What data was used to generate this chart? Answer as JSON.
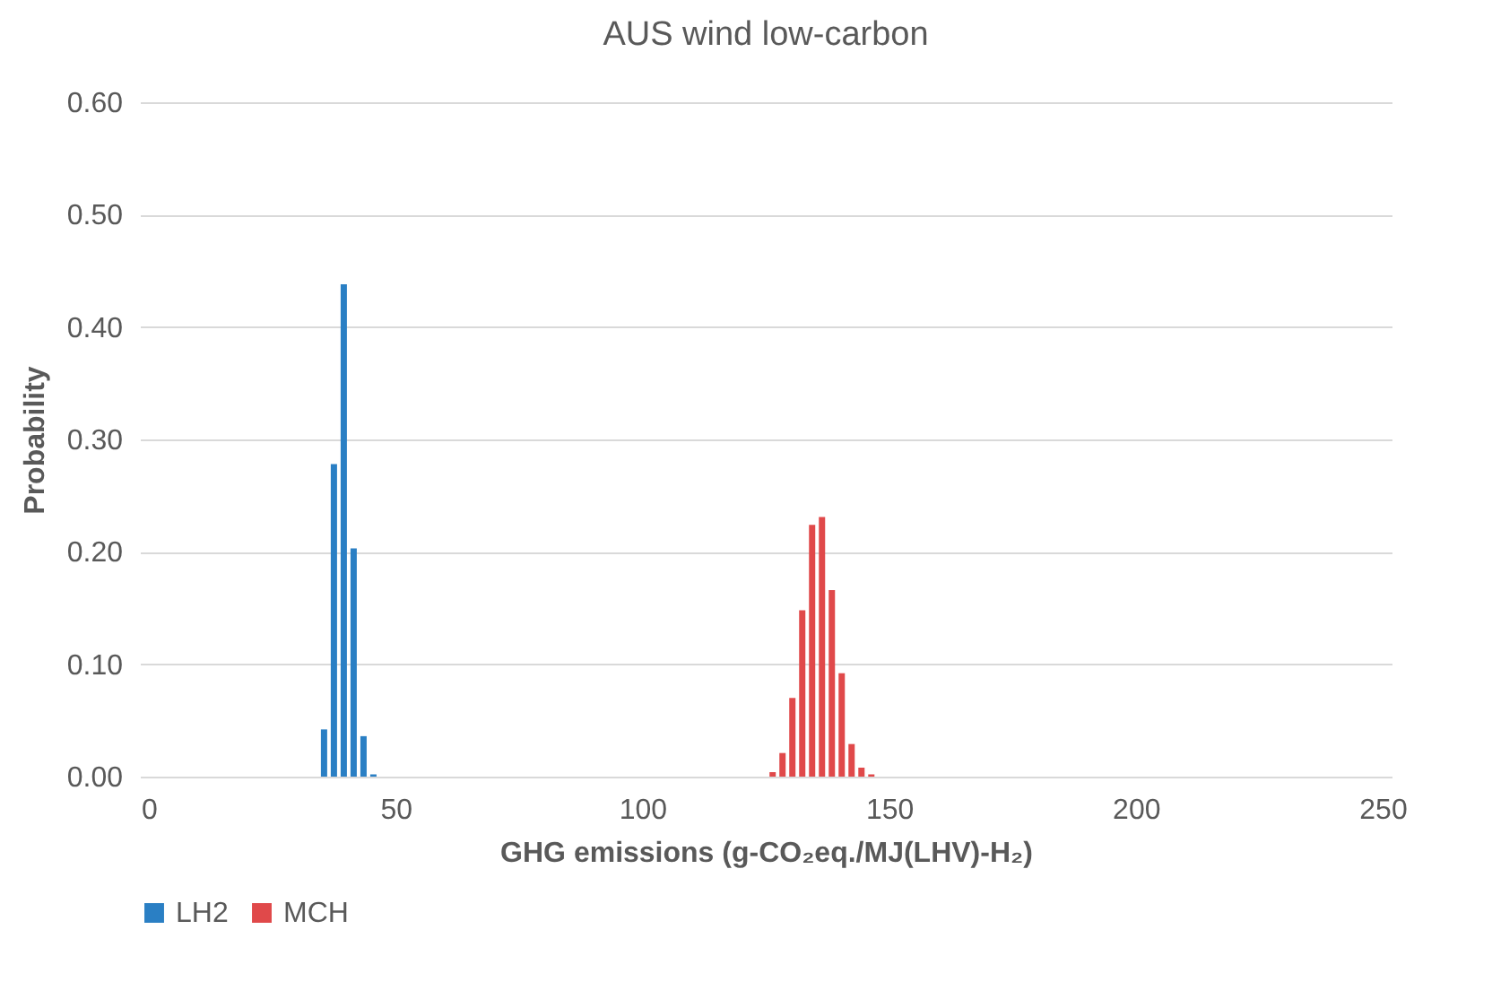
{
  "chart_data": {
    "type": "bar",
    "title": "AUS wind low-carbon",
    "xlabel": "GHG emissions (g-CO₂eq./MJ(LHV)-H₂)",
    "ylabel": "Probability",
    "xlim": [
      0,
      250
    ],
    "xticks": [
      0,
      50,
      100,
      150,
      200,
      250
    ],
    "ylim": [
      0,
      0.6
    ],
    "yticks": [
      {
        "value": 0,
        "label": "0.00"
      },
      {
        "value": 0.1,
        "label": "0.10"
      },
      {
        "value": 0.2,
        "label": "0.20"
      },
      {
        "value": 0.3,
        "label": "0.30"
      },
      {
        "value": 0.4,
        "label": "0.40"
      },
      {
        "value": 0.5,
        "label": "0.50"
      },
      {
        "value": 0.6,
        "label": "0.60"
      }
    ],
    "grid": "y",
    "legend": "bottom",
    "series": [
      {
        "name": "LH2",
        "color": "#2a7fc4",
        "x": [
          35.5,
          37.5,
          39.5,
          41.5,
          43.5,
          45.5
        ],
        "values": [
          0.042,
          0.278,
          0.438,
          0.203,
          0.036,
          0.002
        ]
      },
      {
        "name": "MCH",
        "color": "#e0494a",
        "x": [
          126.4,
          128.4,
          130.4,
          132.4,
          134.4,
          136.4,
          138.4,
          140.4,
          142.4,
          144.4,
          146.4
        ],
        "values": [
          0.004,
          0.021,
          0.07,
          0.148,
          0.224,
          0.231,
          0.166,
          0.092,
          0.029,
          0.008,
          0.002
        ]
      }
    ]
  }
}
